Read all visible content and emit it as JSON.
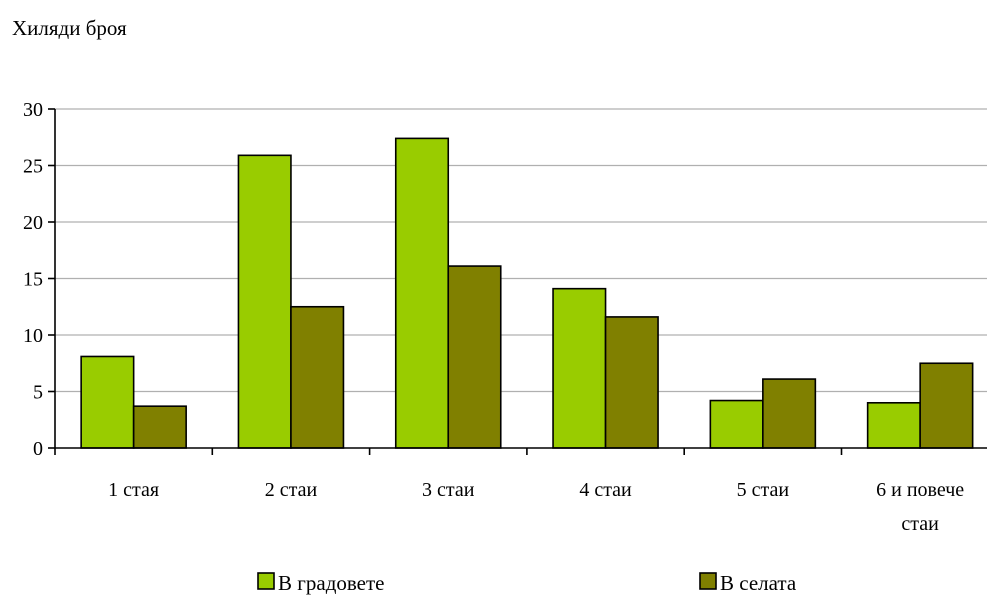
{
  "chart_data": {
    "type": "bar",
    "title": "",
    "ylabel": "Хиляди броя",
    "xlabel": "",
    "ylim": [
      0,
      30
    ],
    "y_ticks": [
      "0",
      "5",
      "10",
      "15",
      "20",
      "25",
      "30"
    ],
    "y_tick_values": [
      0,
      5,
      10,
      15,
      20,
      25,
      30
    ],
    "grid": true,
    "legend_position": "bottom",
    "categories": [
      [
        "1 стая"
      ],
      [
        "2 стаи"
      ],
      [
        "3 стаи"
      ],
      [
        "4 стаи"
      ],
      [
        "5 стаи"
      ],
      [
        "6 и повече",
        "стаи"
      ]
    ],
    "series": [
      {
        "name": "В градовете",
        "color": "#99CC00",
        "values": [
          8.1,
          25.9,
          27.4,
          14.1,
          4.2,
          4.0
        ]
      },
      {
        "name": "В селата",
        "color": "#808000",
        "values": [
          3.7,
          12.5,
          16.1,
          11.6,
          6.1,
          7.5
        ]
      }
    ]
  }
}
